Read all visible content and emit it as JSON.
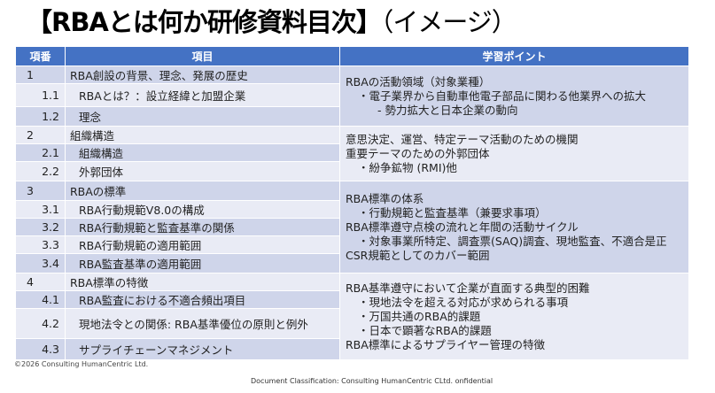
{
  "title": {
    "bold": "【RBAとは何か研修資料目次】",
    "light": "（イメージ）"
  },
  "headers": {
    "no": "項番",
    "item": "項目",
    "points": "学習ポイント"
  },
  "rows": [
    {
      "no": "1",
      "item": "RBA創設の背景、理念、発展の歴史"
    },
    {
      "no": "1.1",
      "item": "RBAとは？：設立経緯と加盟企業"
    },
    {
      "no": "1.2",
      "item": "理念"
    },
    {
      "no": "2",
      "item": "組織構造"
    },
    {
      "no": "2.1",
      "item": "組織構造"
    },
    {
      "no": "2.2",
      "item": "外郭団体"
    },
    {
      "no": "3",
      "item": "RBAの標準"
    },
    {
      "no": "3.1",
      "item": "RBA行動規範V8.0の構成"
    },
    {
      "no": "3.2",
      "item": "RBA行動規範と監査基準の関係"
    },
    {
      "no": "3.3",
      "item": "RBA行動規範の適用範囲"
    },
    {
      "no": "3.4",
      "item": "RBA監査基準の適用範囲"
    },
    {
      "no": "4",
      "item": "RBA標準の特徴"
    },
    {
      "no": "4.1",
      "item": "RBA監査における不適合頻出項目"
    },
    {
      "no": "4.2",
      "item": "現地法令との関係: RBA基準優位の原則と例外"
    },
    {
      "no": "4.3",
      "item": "サプライチェーンマネジメント"
    }
  ],
  "points": [
    [
      "RBAの活動領域（対象業種）",
      "・電子業界から自動車他電子部品に関わる他業界への拡大",
      "- 勢力拡大と日本企業の動向"
    ],
    [
      "意思決定、運営、特定テーマ活動のための機関",
      "重要テーマのための外郭団体",
      "・紛争鉱物 (RMI)他"
    ],
    [
      "RBA標準の体系",
      "・行動規範と監査基準（兼要求事項）",
      "RBA標準遵守点検の流れと年間の活動サイクル",
      "・対象事業所特定、調査票(SAQ)調査、現地監査、不適合是正",
      "CSR規範としてのカバー範囲"
    ],
    [
      "RBA基準遵守において企業が直面する典型的困難",
      "・現地法令を超える対応が求められる事項",
      "・万国共通のRBA的課題",
      "・日本で顕著なRBA的課題",
      "RBA標準によるサプライヤー管理の特徴"
    ]
  ],
  "footer": {
    "copyright": "©2026 Consulting HumanCentric Ltd.",
    "classification": "Document Classification: Consulting HumanCentric CLtd. onfidential"
  },
  "colors": {
    "header": "#4472c4",
    "row_dark": "#cfd5ea",
    "row_light": "#e9ebf5"
  }
}
